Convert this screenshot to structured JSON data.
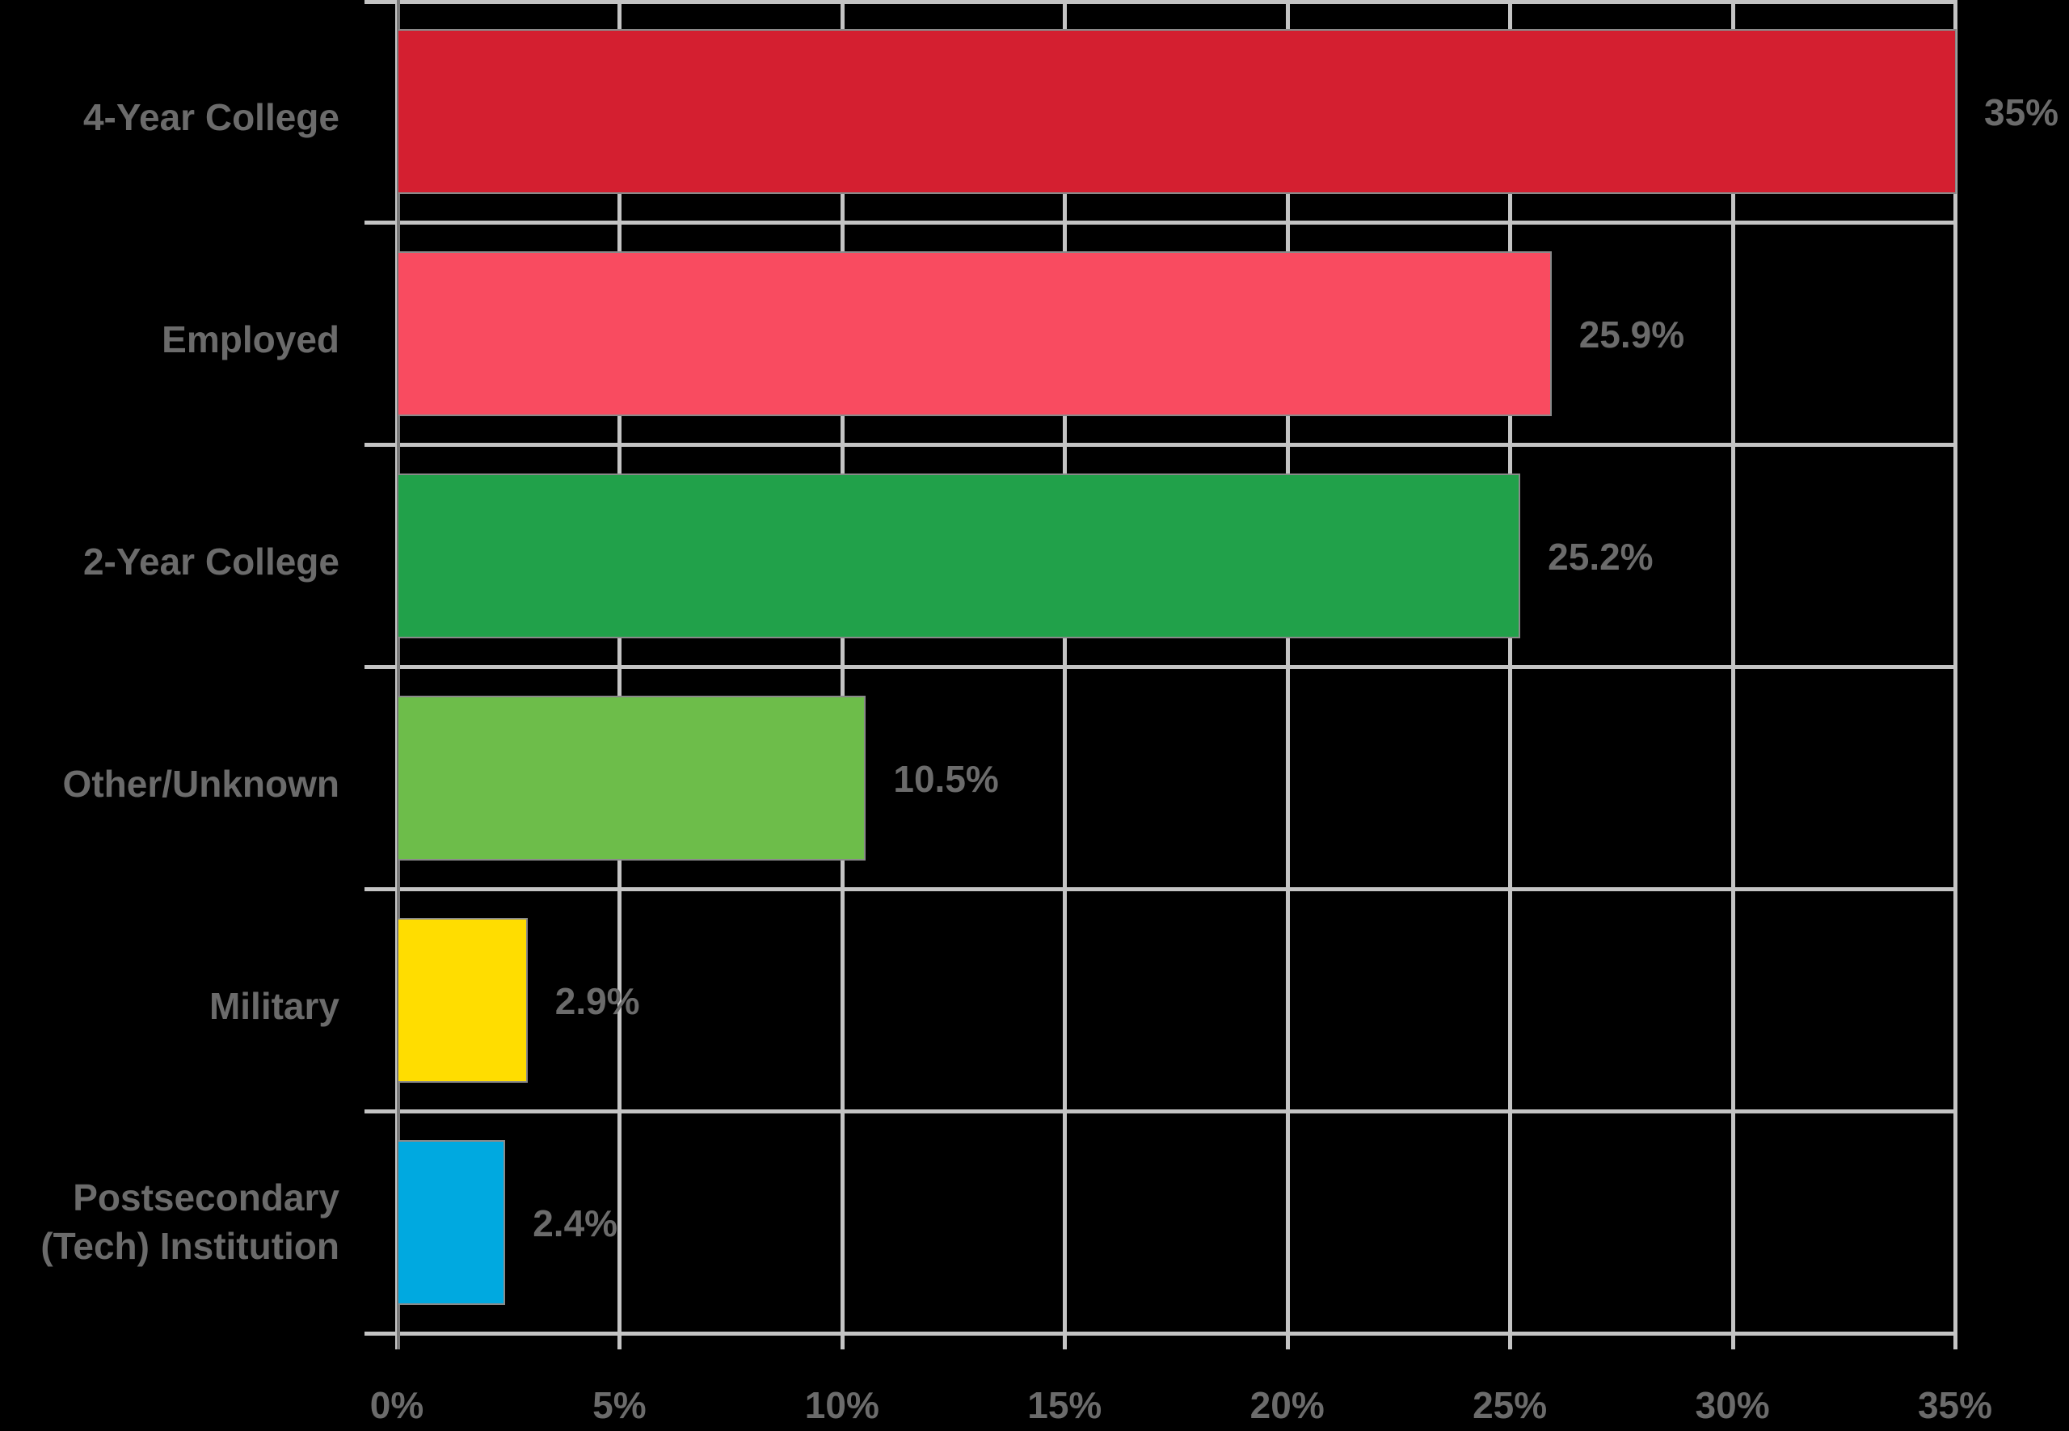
{
  "chart_data": {
    "type": "bar",
    "orientation": "horizontal",
    "title": "",
    "xlabel": "",
    "ylabel": "",
    "xlim": [
      0,
      35
    ],
    "grid": true,
    "categories": [
      "4-Year College",
      "Employed",
      "2-Year College",
      "Other/Unknown",
      "Military",
      "Postsecondary (Tech) Institution"
    ],
    "values": [
      35,
      25.9,
      25.2,
      10.5,
      2.9,
      2.4
    ],
    "value_labels": [
      "35%",
      "25.9%",
      "25.2%",
      "10.5%",
      "2.9%",
      "2.4%"
    ],
    "colors": [
      "#d41f30",
      "#f94b60",
      "#21a14a",
      "#6dbd4a",
      "#ffdd00",
      "#00a9e0"
    ],
    "x_ticks": [
      "0%",
      "5%",
      "10%",
      "15%",
      "20%",
      "25%",
      "30%",
      "35%"
    ]
  }
}
